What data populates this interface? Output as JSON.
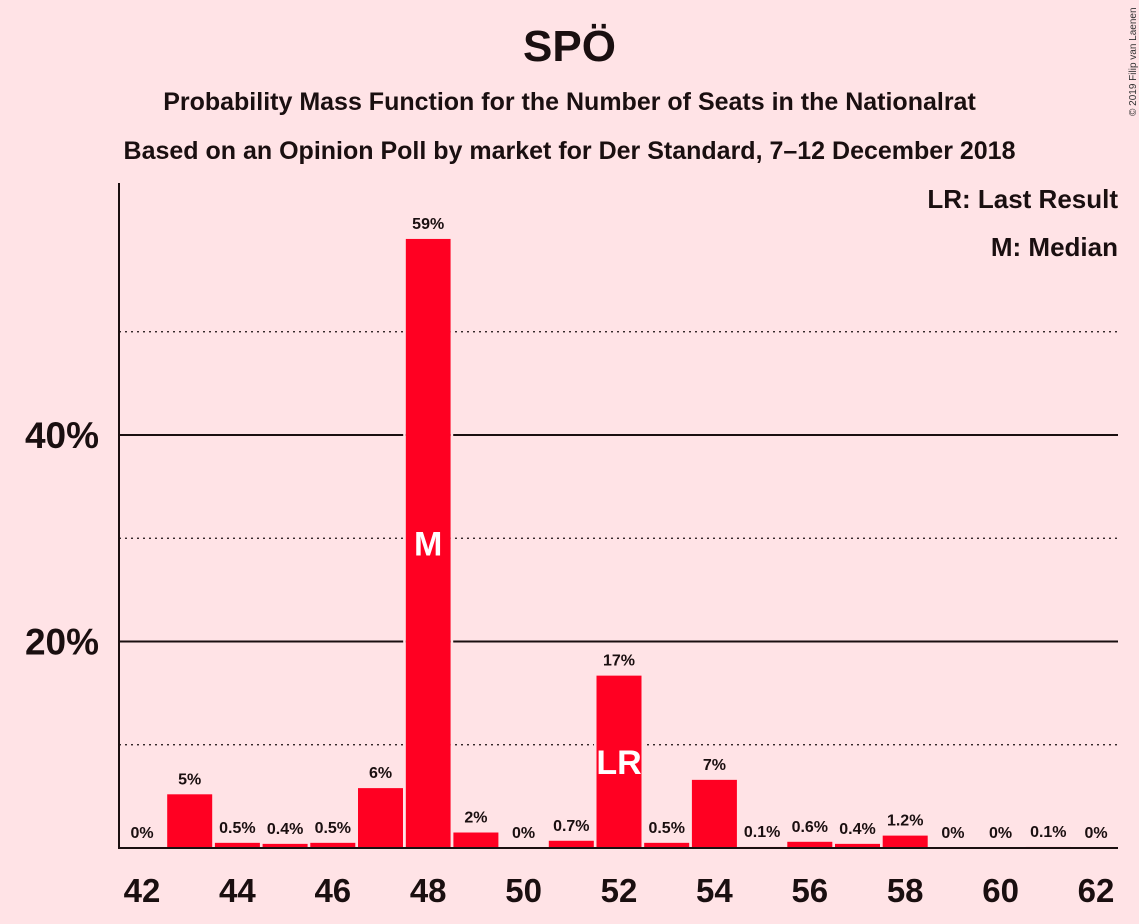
{
  "chart_data": {
    "type": "bar",
    "title": "SPÖ",
    "subtitle_1": "Probability Mass Function for the Number of Seats in the Nationalrat",
    "subtitle_2": "Based on an Opinion Poll by market for Der Standard, 7–12 December 2018",
    "legend": {
      "lr": "LR: Last Result",
      "m": "M: Median",
      "placement": "top-right"
    },
    "copyright": "© 2019 Filip van Laenen",
    "categories": [
      42,
      43,
      44,
      45,
      46,
      47,
      48,
      49,
      50,
      51,
      52,
      53,
      54,
      55,
      56,
      57,
      58,
      59,
      60,
      61,
      62
    ],
    "values": [
      0,
      5.2,
      0.5,
      0.4,
      0.5,
      5.8,
      59,
      1.5,
      0,
      0.7,
      16.7,
      0.5,
      6.6,
      0.1,
      0.6,
      0.4,
      1.2,
      0,
      0,
      0.1,
      0
    ],
    "labels": [
      "0%",
      "5%",
      "0.5%",
      "0.4%",
      "0.5%",
      "6%",
      "59%",
      "2%",
      "0%",
      "0.7%",
      "17%",
      "0.5%",
      "7%",
      "0.1%",
      "0.6%",
      "0.4%",
      "1.2%",
      "0%",
      "0%",
      "0.1%",
      "0%"
    ],
    "x_tick_labels": [
      "42",
      "44",
      "46",
      "48",
      "50",
      "52",
      "54",
      "56",
      "58",
      "60",
      "62"
    ],
    "y_tick_labels": [
      "20%",
      "40%"
    ],
    "y_major_ticks": [
      20,
      40
    ],
    "y_minor_gridlines": [
      10,
      30,
      50
    ],
    "ylim": [
      0,
      64.5
    ],
    "median_seat": 48,
    "median_marker": "M",
    "last_result_seat": 52,
    "last_result_marker": "LR",
    "bar_color": "#ff0022",
    "background": "#ffe3e6"
  }
}
